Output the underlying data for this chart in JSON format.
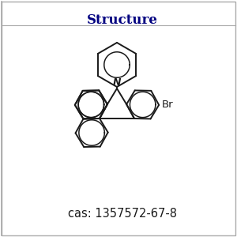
{
  "title": "Structure",
  "title_color": "#1a1a00",
  "cas_text": "cas: 1357572-67-8",
  "background_color": "#ffffff",
  "bond_color": "#1a1a1a",
  "atom_color": "#1a1a1a",
  "title_fontsize": 12,
  "cas_fontsize": 10.5,
  "bond_lw": 1.4,
  "inner_circle_lw": 1.1
}
